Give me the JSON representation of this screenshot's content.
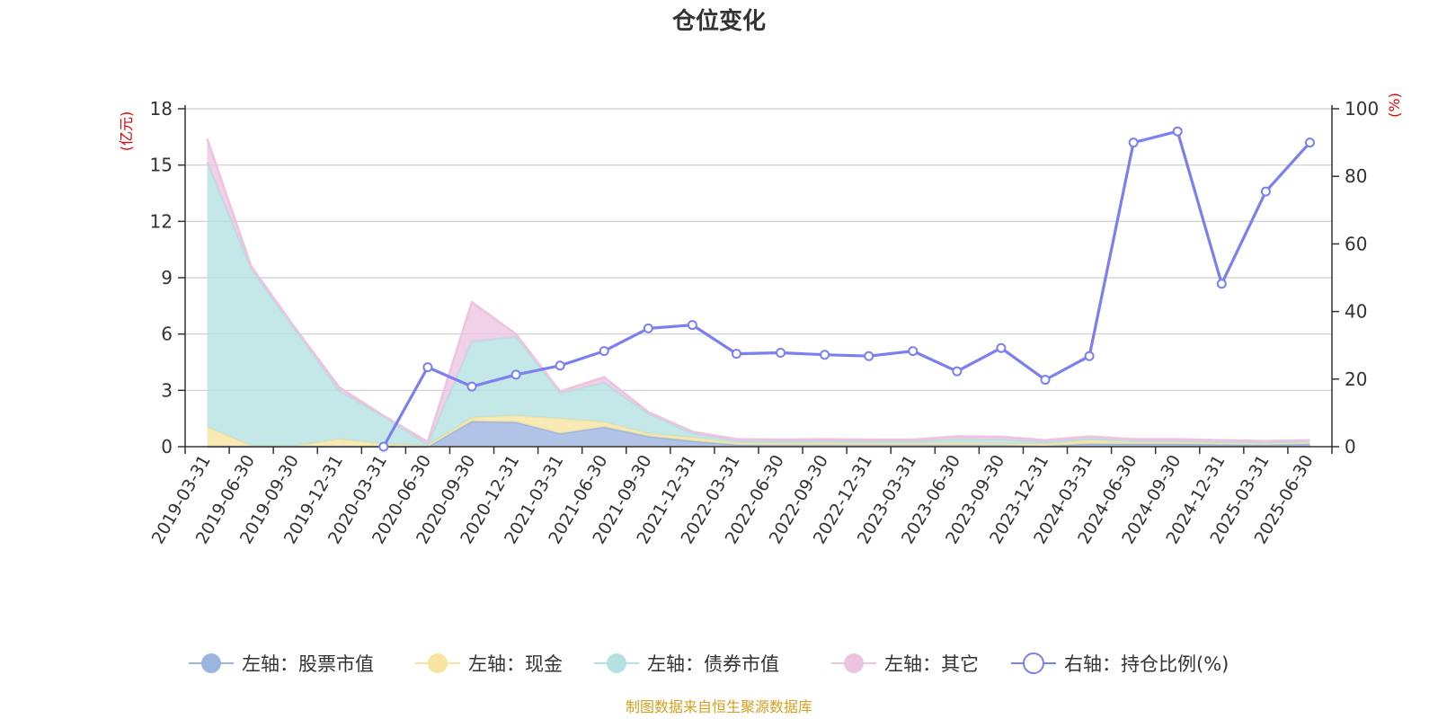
{
  "chart_data": {
    "title": "仓位变化",
    "type": "area+line",
    "categories": [
      "2019-03-31",
      "2019-06-30",
      "2019-09-30",
      "2019-12-31",
      "2020-03-31",
      "2020-06-30",
      "2020-09-30",
      "2020-12-31",
      "2021-03-31",
      "2021-06-30",
      "2021-09-30",
      "2021-12-31",
      "2022-03-31",
      "2022-06-30",
      "2022-09-30",
      "2022-12-31",
      "2023-03-31",
      "2023-06-30",
      "2023-09-30",
      "2023-12-31",
      "2024-03-31",
      "2024-06-30",
      "2024-09-30",
      "2024-12-31",
      "2025-03-31",
      "2025-06-30"
    ],
    "left_axis": {
      "unit": "(亿元)",
      "ylim": [
        0,
        18
      ],
      "ticks": [
        0,
        3,
        6,
        9,
        12,
        15,
        18
      ]
    },
    "right_axis": {
      "unit": "(%)",
      "ylim": [
        0,
        100
      ],
      "ticks": [
        0,
        20,
        40,
        60,
        80,
        100
      ]
    },
    "series": [
      {
        "name": "左轴：股票市值",
        "axis": "left",
        "kind": "stacked-area",
        "color": "#9bb4e0",
        "values": [
          0.0,
          0.0,
          0.0,
          0.0,
          0.0,
          0.0,
          1.35,
          1.3,
          0.7,
          1.05,
          0.55,
          0.3,
          0.1,
          0.08,
          0.08,
          0.08,
          0.08,
          0.08,
          0.08,
          0.05,
          0.15,
          0.15,
          0.15,
          0.12,
          0.1,
          0.15
        ]
      },
      {
        "name": "左轴：现金",
        "axis": "left",
        "kind": "stacked-area",
        "color": "#f7e4a0",
        "values": [
          1.05,
          0.05,
          0.05,
          0.4,
          0.15,
          0.05,
          0.2,
          0.35,
          0.8,
          0.25,
          0.15,
          0.2,
          0.1,
          0.1,
          0.12,
          0.1,
          0.1,
          0.12,
          0.1,
          0.1,
          0.2,
          0.1,
          0.1,
          0.08,
          0.08,
          0.08
        ]
      },
      {
        "name": "左轴：债券市值",
        "axis": "left",
        "kind": "stacked-area",
        "color": "#b4e2e2",
        "values": [
          14.1,
          9.4,
          6.15,
          2.55,
          1.45,
          0.05,
          4.05,
          4.2,
          1.35,
          2.1,
          1.05,
          0.2,
          0.1,
          0.1,
          0.1,
          0.1,
          0.1,
          0.2,
          0.2,
          0.1,
          0.1,
          0.05,
          0.05,
          0.05,
          0.05,
          0.05
        ]
      },
      {
        "name": "左轴：其它",
        "axis": "left",
        "kind": "stacked-area",
        "color": "#ecc4e0",
        "values": [
          1.25,
          0.15,
          0.1,
          0.2,
          0.05,
          0.15,
          2.1,
          0.15,
          0.1,
          0.3,
          0.1,
          0.1,
          0.1,
          0.1,
          0.1,
          0.1,
          0.1,
          0.15,
          0.15,
          0.1,
          0.1,
          0.1,
          0.1,
          0.1,
          0.07,
          0.07
        ]
      },
      {
        "name": "右轴：持仓比例(%)",
        "axis": "right",
        "kind": "line",
        "color": "#7b7ff0",
        "values": [
          null,
          null,
          null,
          null,
          0,
          23.5,
          17.8,
          21.3,
          24,
          28.3,
          35,
          36,
          27.5,
          27.8,
          27.2,
          26.8,
          28.3,
          22.3,
          29.2,
          19.8,
          26.8,
          90,
          93.3,
          48.2,
          75.5,
          90
        ]
      }
    ],
    "grid": true,
    "legend_position": "bottom"
  },
  "source": "制图数据来自恒生聚源数据库"
}
